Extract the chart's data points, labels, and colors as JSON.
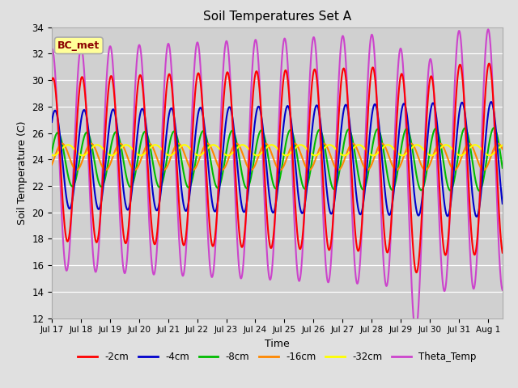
{
  "title": "Soil Temperatures Set A",
  "xlabel": "Time",
  "ylabel": "Soil Temperature (C)",
  "ylim": [
    12,
    34
  ],
  "xlim": [
    0.0,
    15.5
  ],
  "fig_bg": "#e0e0e0",
  "plot_bg": "#d0d0d0",
  "annotation_text": "BC_met",
  "annotation_color": "#8b0000",
  "annotation_bg": "#ffff99",
  "xtick_labels": [
    "Jul 17",
    "Jul 18",
    "Jul 19",
    "Jul 20",
    "Jul 21",
    "Jul 22",
    "Jul 23",
    "Jul 24",
    "Jul 25",
    "Jul 26",
    "Jul 27",
    "Jul 28",
    "Jul 29",
    "Jul 30",
    "Jul 31",
    "Aug 1"
  ],
  "legend": [
    {
      "label": "-2cm",
      "color": "#ff0000"
    },
    {
      "label": "-4cm",
      "color": "#0000cc"
    },
    {
      "label": "-8cm",
      "color": "#00bb00"
    },
    {
      "label": "-16cm",
      "color": "#ff8800"
    },
    {
      "label": "-32cm",
      "color": "#ffff00"
    },
    {
      "label": "Theta_Temp",
      "color": "#cc44cc"
    }
  ]
}
